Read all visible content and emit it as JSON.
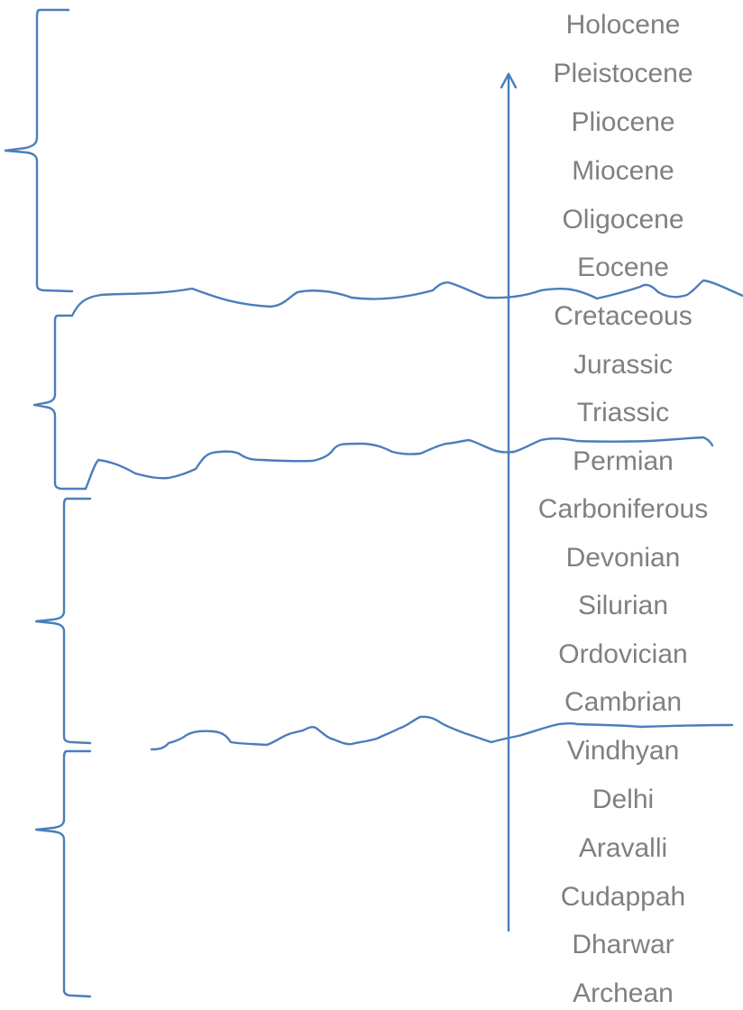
{
  "colors": {
    "line": "#4a7ebb",
    "text": "#808080",
    "background": "#ffffff"
  },
  "periods": [
    "Holocene",
    "Pleistocene",
    "Pliocene",
    "Miocene",
    "Oligocene",
    "Eocene",
    "Cretaceous",
    "Jurassic",
    "Triassic",
    "Permian",
    "Carboniferous",
    "Devonian",
    "Silurian",
    "Ordovician",
    "Cambrian",
    "Vindhyan",
    "Delhi",
    "Aravalli",
    "Cudappah",
    "Dharwar",
    "Archean"
  ]
}
